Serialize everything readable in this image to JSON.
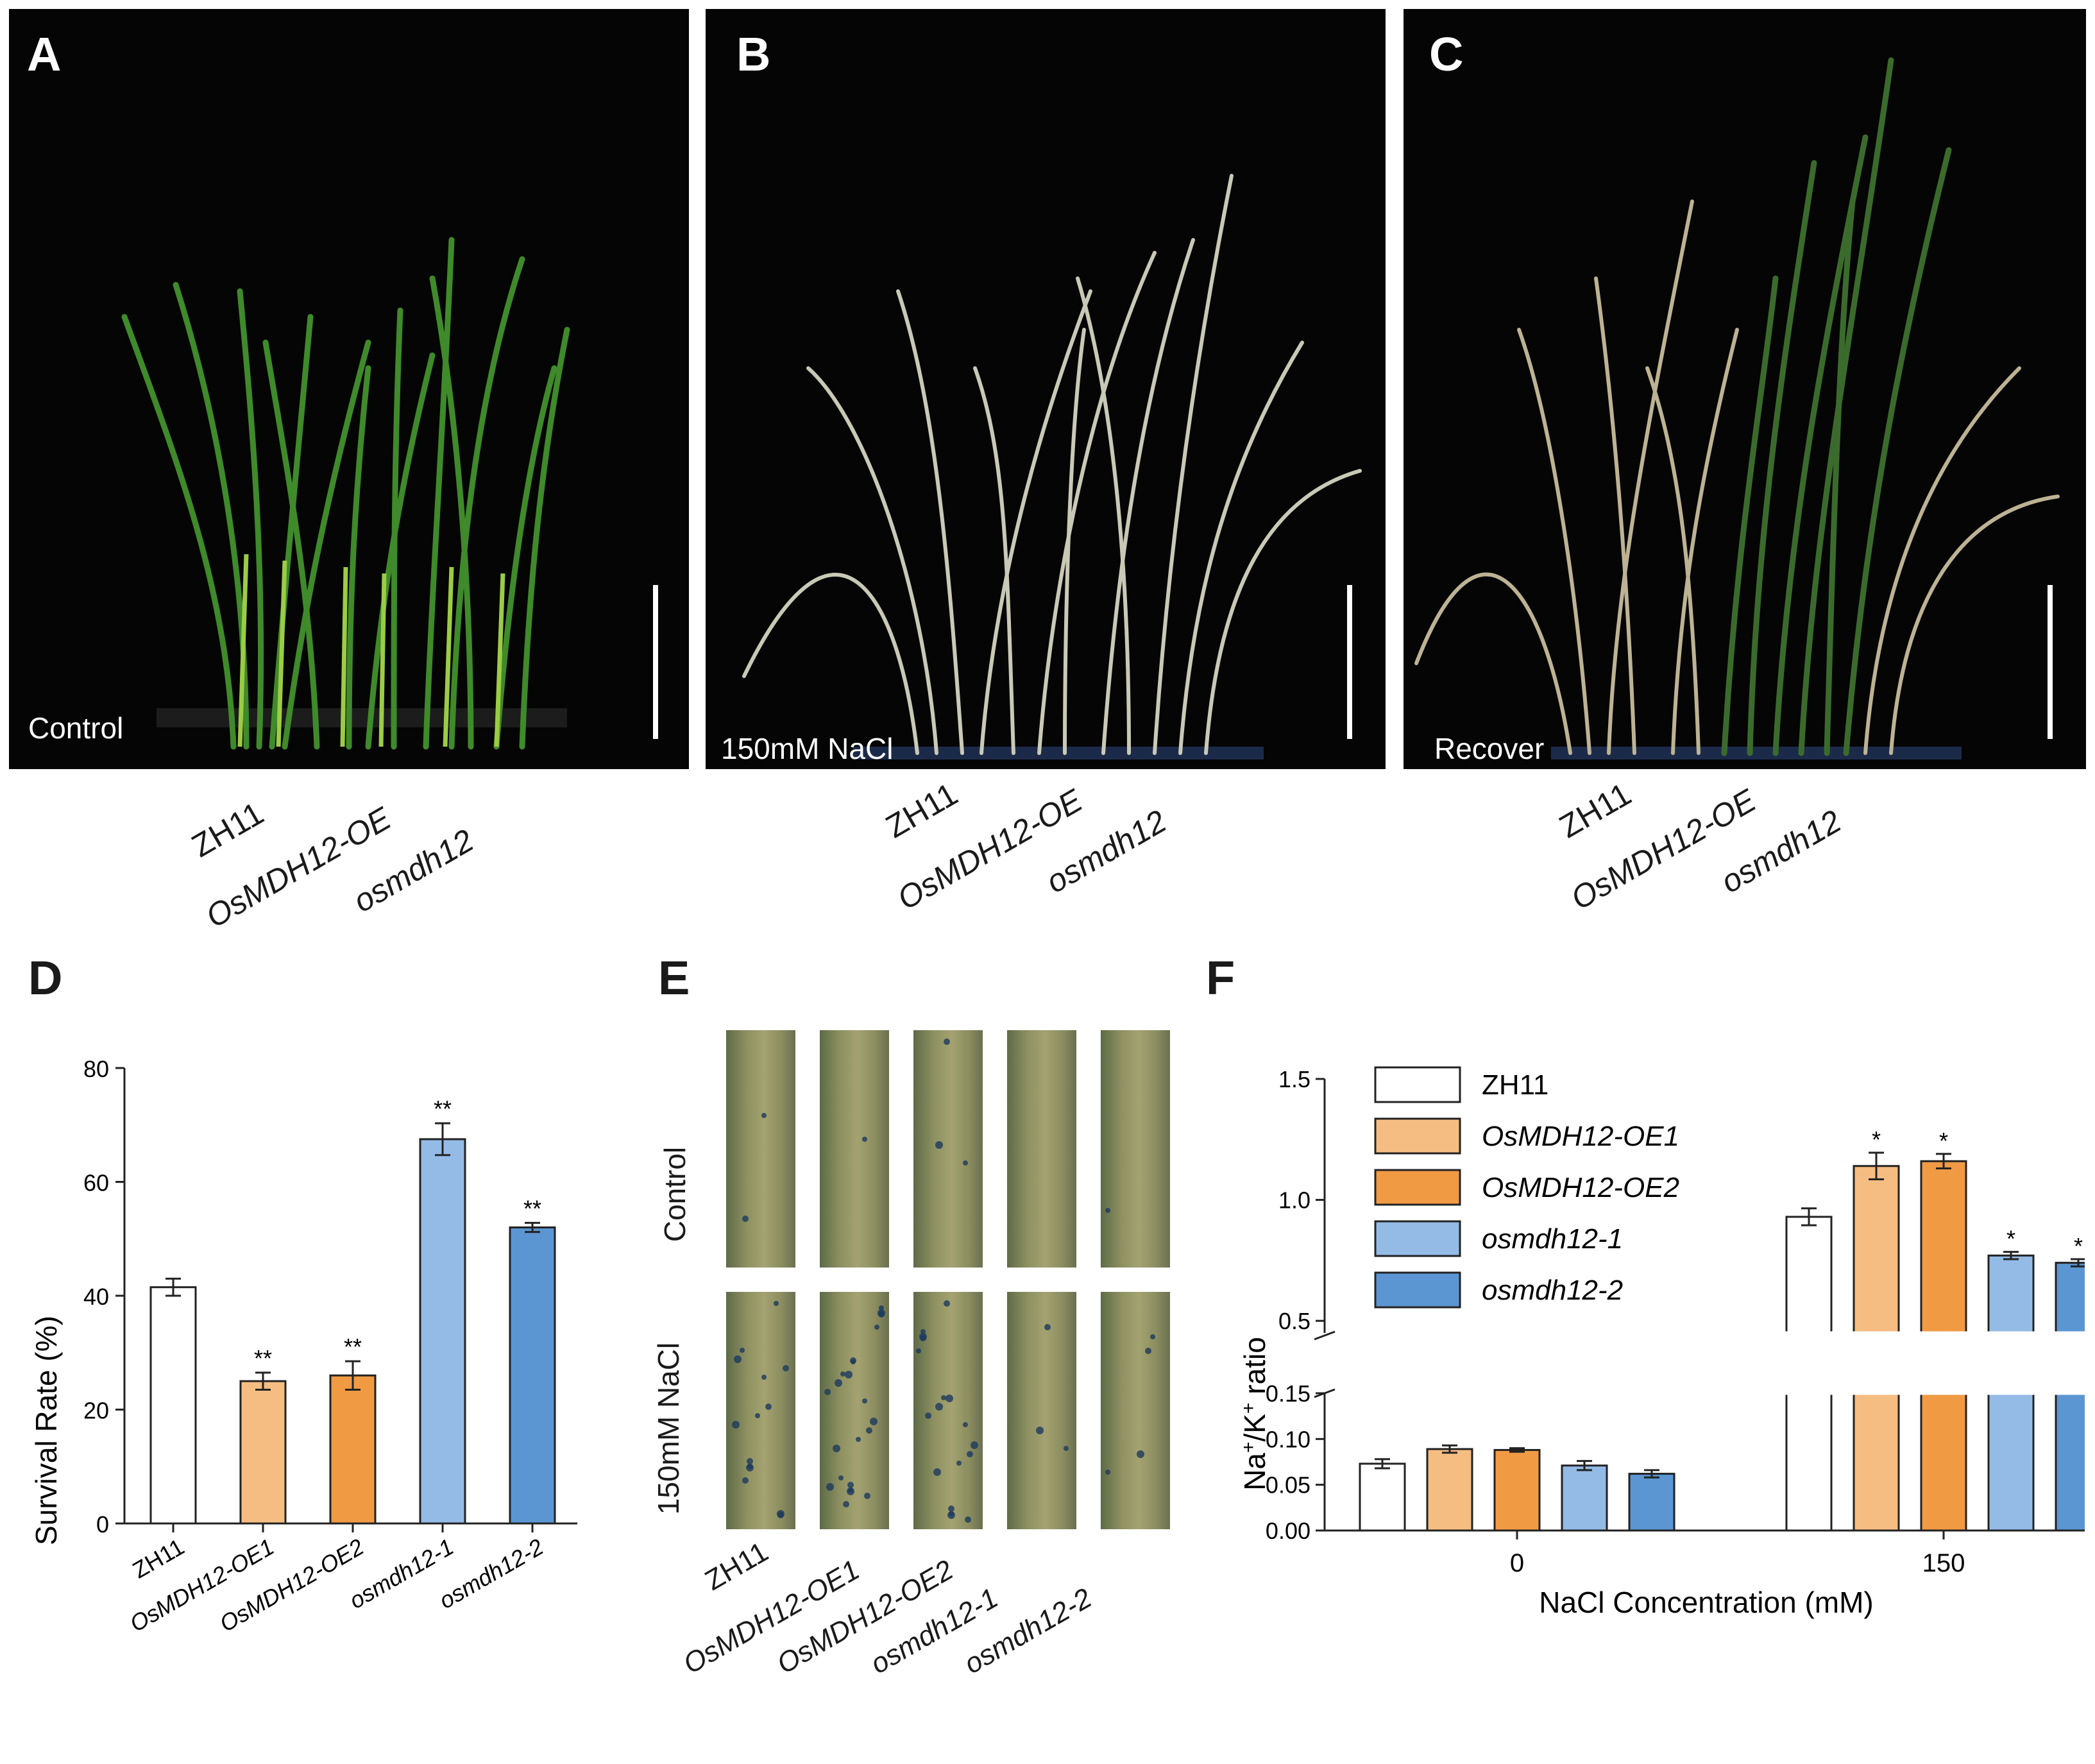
{
  "panels": {
    "A": {
      "letter": "A",
      "condition": "Control"
    },
    "B": {
      "letter": "B",
      "condition": "150mM NaCl"
    },
    "C": {
      "letter": "C",
      "condition": "Recover"
    },
    "D": {
      "letter": "D"
    },
    "E": {
      "letter": "E",
      "row_labels": [
        "Control",
        "150mM  NaCl"
      ]
    },
    "F": {
      "letter": "F"
    }
  },
  "photo_genotypes": [
    "ZH11",
    "OsMDH12-OE",
    "osmdh12"
  ],
  "genotypes": [
    "ZH11",
    "OsMDH12-OE1",
    "OsMDH12-OE2",
    "osmdh12-1",
    "osmdh12-2"
  ],
  "colors": {
    "ZH11": "#ffffff",
    "OsMDH12-OE1": "#f5bd82",
    "OsMDH12-OE2": "#f09a44",
    "osmdh12-1": "#94bbe6",
    "osmdh12-2": "#5b96d2",
    "photo_bg": "#050505"
  },
  "chart_data": [
    {
      "panel": "D",
      "type": "bar",
      "categories": [
        "ZH11",
        "OsMDH12-OE1",
        "OsMDH12-OE2",
        "osmdh12-1",
        "osmdh12-2"
      ],
      "values": [
        41.5,
        25,
        26,
        67.5,
        52
      ],
      "errors": [
        1.5,
        1.5,
        2.5,
        2.8,
        0.8
      ],
      "significance": [
        "",
        "**",
        "**",
        "**",
        "**"
      ],
      "ylabel": "Survival Rate (%)",
      "ylim": [
        0,
        80
      ],
      "yticks": [
        "0",
        "20",
        "40",
        "60",
        "80"
      ]
    },
    {
      "panel": "F",
      "type": "bar",
      "x": [
        "0",
        "150"
      ],
      "xlabel": "NaCl Concentration (mM)",
      "ylabel_parts": [
        "Na",
        "/K",
        " ratio"
      ],
      "ylabel_sup": [
        "+",
        "+"
      ],
      "ylim_lower": [
        0,
        0.15
      ],
      "ylim_upper": [
        0.45,
        1.5
      ],
      "yticks_lower": [
        "0.00",
        "0.05",
        "0.10",
        "0.15"
      ],
      "yticks_upper": [
        "0.5",
        "1.0",
        "1.5"
      ],
      "series": [
        {
          "name": "ZH11",
          "values": [
            0.073,
            0.93
          ],
          "errors": [
            0.005,
            0.035
          ],
          "significance": [
            "",
            ""
          ]
        },
        {
          "name": "OsMDH12-OE1",
          "values": [
            0.089,
            1.14
          ],
          "errors": [
            0.004,
            0.055
          ],
          "significance": [
            "",
            "*"
          ]
        },
        {
          "name": "OsMDH12-OE2",
          "values": [
            0.088,
            1.16
          ],
          "errors": [
            0.002,
            0.03
          ],
          "significance": [
            "",
            "*"
          ]
        },
        {
          "name": "osmdh12-1",
          "values": [
            0.071,
            0.77
          ],
          "errors": [
            0.005,
            0.015
          ],
          "significance": [
            "",
            "*"
          ]
        },
        {
          "name": "osmdh12-2",
          "values": [
            0.062,
            0.74
          ],
          "errors": [
            0.004,
            0.015
          ],
          "significance": [
            "",
            "*"
          ]
        }
      ]
    }
  ]
}
